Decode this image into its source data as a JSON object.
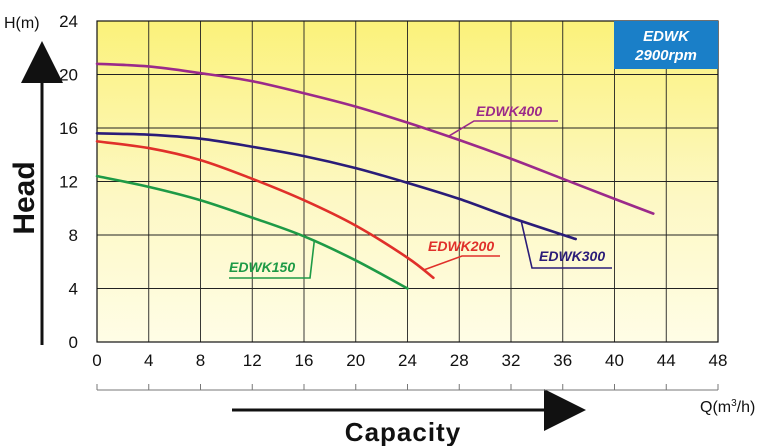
{
  "chart_data": {
    "type": "line",
    "title": "",
    "xlabel": "Capacity",
    "ylabel": "Head",
    "x_unit": "Q(m3/h)",
    "y_unit": "H(m)",
    "xlim": [
      0,
      48
    ],
    "ylim": [
      0,
      24
    ],
    "x_ticks": [
      0,
      4,
      8,
      12,
      16,
      20,
      24,
      28,
      32,
      36,
      40,
      44,
      48
    ],
    "y_ticks": [
      0,
      4,
      8,
      12,
      16,
      20,
      24
    ],
    "grid": true,
    "background": "yellow-gradient",
    "badge": {
      "line1": "EDWK",
      "line2": "2900rpm",
      "color": "#1a7fc8"
    },
    "series": [
      {
        "name": "EDWK150",
        "color": "#1e9a46",
        "x": [
          0,
          4,
          8,
          12,
          16,
          20,
          24
        ],
        "y": [
          12.4,
          11.6,
          10.6,
          9.3,
          7.9,
          6.1,
          4.0
        ]
      },
      {
        "name": "EDWK200",
        "color": "#e0302a",
        "x": [
          0,
          4,
          8,
          12,
          16,
          20,
          24,
          26
        ],
        "y": [
          15.0,
          14.5,
          13.6,
          12.2,
          10.6,
          8.7,
          6.3,
          4.8
        ]
      },
      {
        "name": "EDWK300",
        "color": "#2a1c78",
        "x": [
          0,
          4,
          8,
          12,
          16,
          20,
          24,
          28,
          32,
          37
        ],
        "y": [
          15.6,
          15.5,
          15.2,
          14.6,
          13.9,
          13.0,
          11.9,
          10.7,
          9.3,
          7.7
        ]
      },
      {
        "name": "EDWK400",
        "color": "#9b2a8a",
        "x": [
          0,
          4,
          8,
          12,
          16,
          20,
          24,
          28,
          32,
          36,
          40,
          43
        ],
        "y": [
          20.8,
          20.6,
          20.1,
          19.5,
          18.6,
          17.6,
          16.4,
          15.1,
          13.7,
          12.2,
          10.7,
          9.6
        ]
      }
    ]
  }
}
